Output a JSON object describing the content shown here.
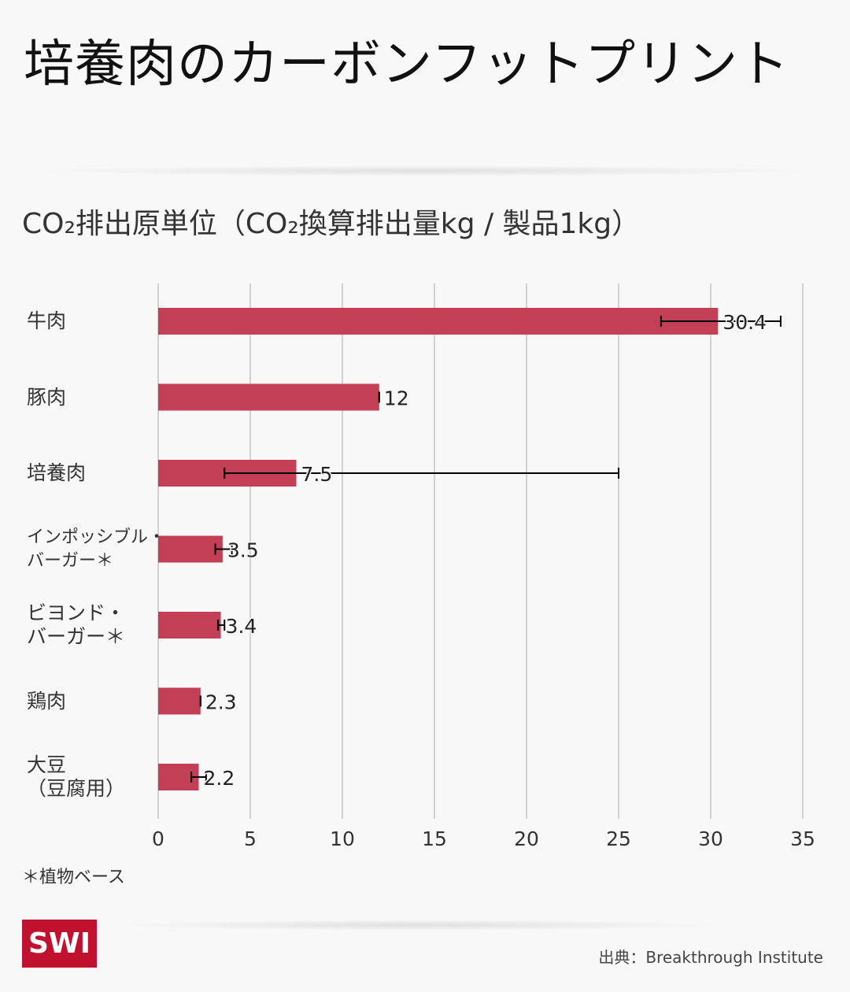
{
  "title": "培養肉のカーボンフットプリント",
  "subtitle": "CO₂排出原単位（CO₂換算排出量kg / 製品1kg）",
  "note": "＊植物ベース",
  "logo": "SWI",
  "source": "出典：Breakthrough Institute",
  "colors": {
    "bar": "#c23f55",
    "grid": "#aaaaaa"
  },
  "chart_data": {
    "type": "bar",
    "orientation": "horizontal",
    "categories": [
      "牛肉",
      "豚肉",
      "培養肉",
      "インポッシブル・バーガー＊",
      "ビヨンド・バーガー＊",
      "鶏肉",
      "大豆（豆腐用）"
    ],
    "category_lines": [
      [
        "牛肉"
      ],
      [
        "豚肉"
      ],
      [
        "培養肉"
      ],
      [
        "インポッシブル・",
        "バーガー＊"
      ],
      [
        "ビヨンド・",
        "バーガー＊"
      ],
      [
        "鶏肉"
      ],
      [
        "大豆",
        "（豆腐用）"
      ]
    ],
    "values": [
      30.4,
      12,
      7.5,
      3.5,
      3.4,
      2.3,
      2.2
    ],
    "labels": [
      "30.4",
      "12",
      "7.5",
      "3.5",
      "3.4",
      "2.3",
      "2.2"
    ],
    "error_low": [
      27.3,
      12,
      3.6,
      3.1,
      3.25,
      2.3,
      1.8
    ],
    "error_high": [
      33.8,
      12,
      25.0,
      4.0,
      3.6,
      2.3,
      2.6
    ],
    "xlim": [
      0,
      35
    ],
    "xticks": [
      0,
      5,
      10,
      15,
      20,
      25,
      30,
      35
    ],
    "grid": true,
    "title": "CO₂排出原単位（CO₂換算排出量kg / 製品1kg）"
  }
}
